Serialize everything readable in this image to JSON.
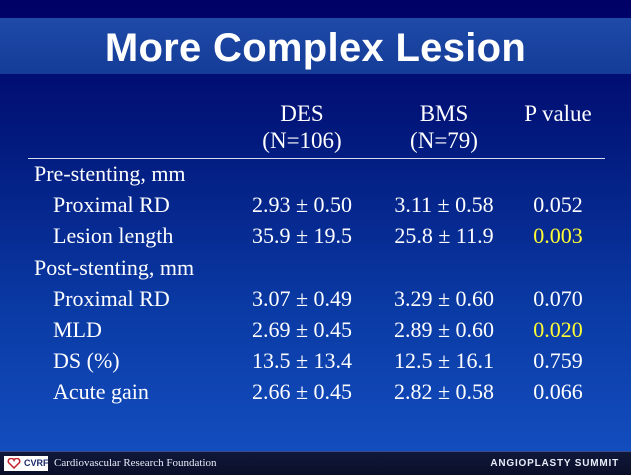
{
  "title": "More Complex Lesion",
  "columns": [
    {
      "line1": "DES",
      "line2": "(N=106)"
    },
    {
      "line1": "BMS",
      "line2": "(N=79)"
    },
    {
      "line1": "P value",
      "line2": ""
    }
  ],
  "rows": [
    {
      "type": "section",
      "label": "Pre-stenting, mm"
    },
    {
      "type": "data",
      "label": "Proximal RD",
      "des": "2.93 ± 0.50",
      "bms": "3.11 ± 0.58",
      "p": "0.052",
      "significant": false
    },
    {
      "type": "data",
      "label": "Lesion length",
      "des": "35.9 ± 19.5",
      "bms": "25.8 ± 11.9",
      "p": "0.003",
      "significant": true
    },
    {
      "type": "section",
      "label": "Post-stenting, mm"
    },
    {
      "type": "data",
      "label": "Proximal RD",
      "des": "3.07 ± 0.49",
      "bms": "3.29 ± 0.60",
      "p": "0.070",
      "significant": false
    },
    {
      "type": "data",
      "label": "MLD",
      "des": "2.69 ± 0.45",
      "bms": "2.89 ± 0.60",
      "p": "0.020",
      "significant": true
    },
    {
      "type": "data",
      "label": "DS (%)",
      "des": "13.5 ± 13.4",
      "bms": "12.5 ± 16.1",
      "p": "0.759",
      "significant": false
    },
    {
      "type": "data",
      "label": "Acute gain",
      "des": "2.66 ± 0.45",
      "bms": "2.82 ± 0.58",
      "p": "0.066",
      "significant": false
    }
  ],
  "footer": {
    "logo_text": "CVRF",
    "foundation": "Cardiovascular Research Foundation",
    "summit": "ANGIOPLASTY SUMMIT"
  },
  "colors": {
    "significant": "#ffff33",
    "background": "#0a3aa4"
  }
}
